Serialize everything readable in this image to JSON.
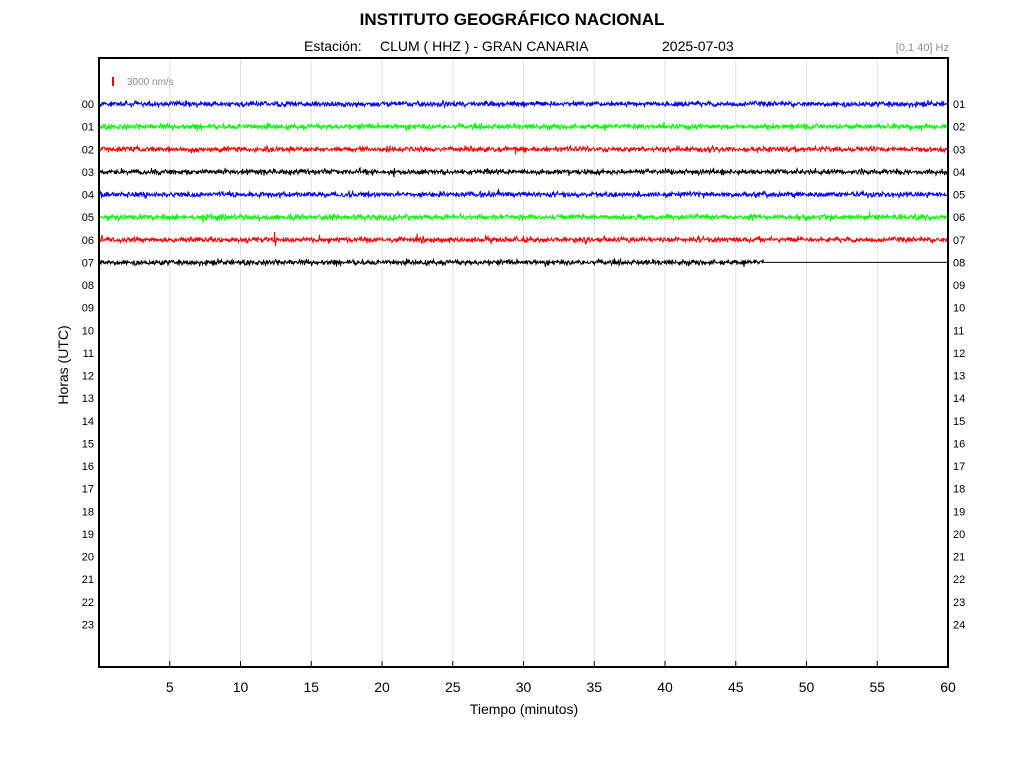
{
  "header": {
    "title": "INSTITUTO GEOGRÁFICO NACIONAL",
    "station_label": "Estación:",
    "station_value": "CLUM ( HHZ ) - GRAN CANARIA",
    "date": "2025-07-03",
    "filter": "[0.1 40] Hz"
  },
  "chart_data": {
    "type": "line",
    "title": "INSTITUTO GEOGRÁFICO NACIONAL",
    "xlabel": "Tiempo (minutos)",
    "ylabel": "Horas (UTC)",
    "xlim": [
      0,
      60
    ],
    "x_ticks": [
      5,
      10,
      15,
      20,
      25,
      30,
      35,
      40,
      45,
      50,
      55,
      60
    ],
    "grid": "vertical",
    "left_hour_labels": [
      "00",
      "01",
      "02",
      "03",
      "04",
      "05",
      "06",
      "07",
      "08",
      "09",
      "10",
      "11",
      "12",
      "13",
      "14",
      "15",
      "16",
      "17",
      "18",
      "19",
      "20",
      "21",
      "22",
      "23"
    ],
    "right_hour_labels": [
      "01",
      "02",
      "03",
      "04",
      "05",
      "06",
      "07",
      "08",
      "09",
      "10",
      "11",
      "12",
      "13",
      "14",
      "15",
      "16",
      "17",
      "18",
      "19",
      "20",
      "21",
      "22",
      "23",
      "24"
    ],
    "scale_label": "3000 nm/s",
    "scale_color": "#ff0000",
    "trace_colors": [
      "#0000ff",
      "#00ff00",
      "#ff0000",
      "#000000"
    ],
    "traces": [
      {
        "hour": "00",
        "end_minute": 60,
        "events": []
      },
      {
        "hour": "01",
        "end_minute": 60,
        "events": []
      },
      {
        "hour": "02",
        "end_minute": 60,
        "events": []
      },
      {
        "hour": "03",
        "end_minute": 60,
        "events": []
      },
      {
        "hour": "04",
        "end_minute": 60,
        "events": []
      },
      {
        "hour": "05",
        "end_minute": 60,
        "events": []
      },
      {
        "hour": "06",
        "end_minute": 60,
        "events": [
          {
            "minute": 12.4,
            "amplitude_factor": 6
          }
        ]
      },
      {
        "hour": "07",
        "end_minute": 47,
        "flatline_to": 60,
        "events": []
      }
    ]
  }
}
